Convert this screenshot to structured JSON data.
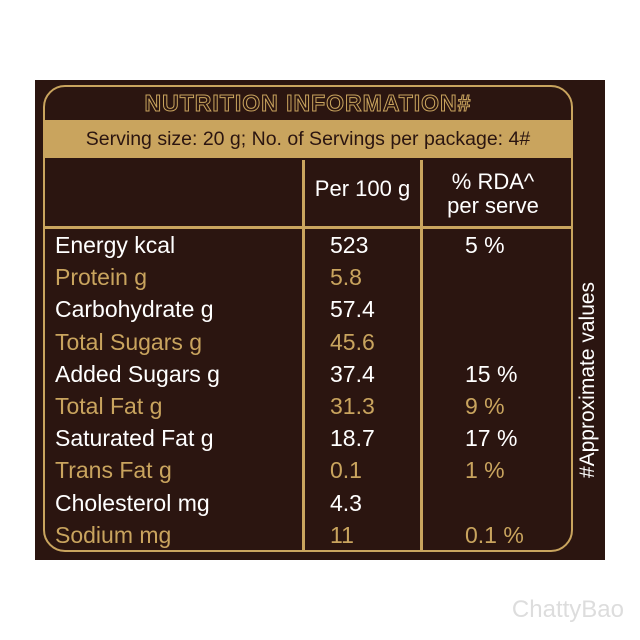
{
  "label": {
    "title": "NUTRITION INFORMATION#",
    "serving": "Serving size: 20 g; No. of Servings per package: 4#",
    "headers": {
      "per100": "Per 100 g",
      "rda": [
        "% RDA^",
        "per serve"
      ]
    },
    "rows": [
      [
        "Energy kcal",
        "523",
        "5 %"
      ],
      [
        "Protein g",
        "5.8",
        null
      ],
      [
        "Carbohydrate g",
        "57.4",
        null
      ],
      [
        "Total Sugars g",
        "45.6",
        null
      ],
      [
        "Added Sugars g",
        "37.4",
        "15 %"
      ],
      [
        "Total Fat g",
        "31.3",
        "9 %"
      ],
      [
        "Saturated Fat g",
        "18.7",
        "17 %"
      ],
      [
        "Trans Fat g",
        "0.1",
        "1 %"
      ],
      [
        "Cholesterol mg",
        "4.3",
        null
      ],
      [
        "Sodium mg",
        "11",
        "0.1 %"
      ]
    ],
    "side_note": "#Approximate values"
  },
  "watermark": "ChattyBao"
}
